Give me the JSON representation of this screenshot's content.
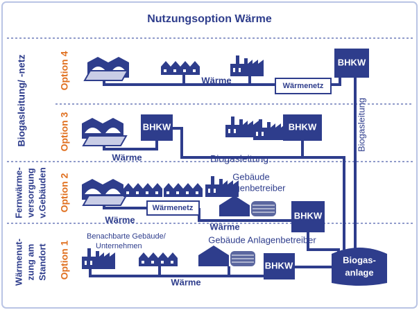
{
  "title": "Nutzungsoption Wärme",
  "groups": [
    {
      "lines": [
        "Biogasleitung/ -netz"
      ]
    },
    {
      "lines": [
        "Fernwärme-",
        "versorgung",
        "v.Gebäuden"
      ]
    },
    {
      "lines": [
        "Wärmenut-",
        "zung am",
        "Standort"
      ]
    }
  ],
  "options": [
    {
      "label": "Option 4",
      "heat": "Wärme",
      "network": "Wärmenetz",
      "chp": "BHKW",
      "pipeline": "Biogasleitung"
    },
    {
      "label": "Option 3",
      "chp_1": "BHKW",
      "chp_2": "BHKW",
      "heat": "Wärme",
      "pipeline": "Biogasleitung"
    },
    {
      "label": "Option 2",
      "building_lines": [
        "Gebäude",
        "Anlagenbetreiber"
      ],
      "network": "Wärmenetz",
      "heat_1": "Wärme",
      "heat_2": "Wärme",
      "chp": "BHKW"
    },
    {
      "label": "Option 1",
      "neighbor_lines": [
        "Benachbarte Gebäude/",
        "Unternehmen"
      ],
      "building": "Gebäude Anlagenbetreiber",
      "chp": "BHKW",
      "heat": "Wärme"
    }
  ],
  "biogas_plant": {
    "lines": [
      "Biogas-",
      "anlage"
    ]
  }
}
